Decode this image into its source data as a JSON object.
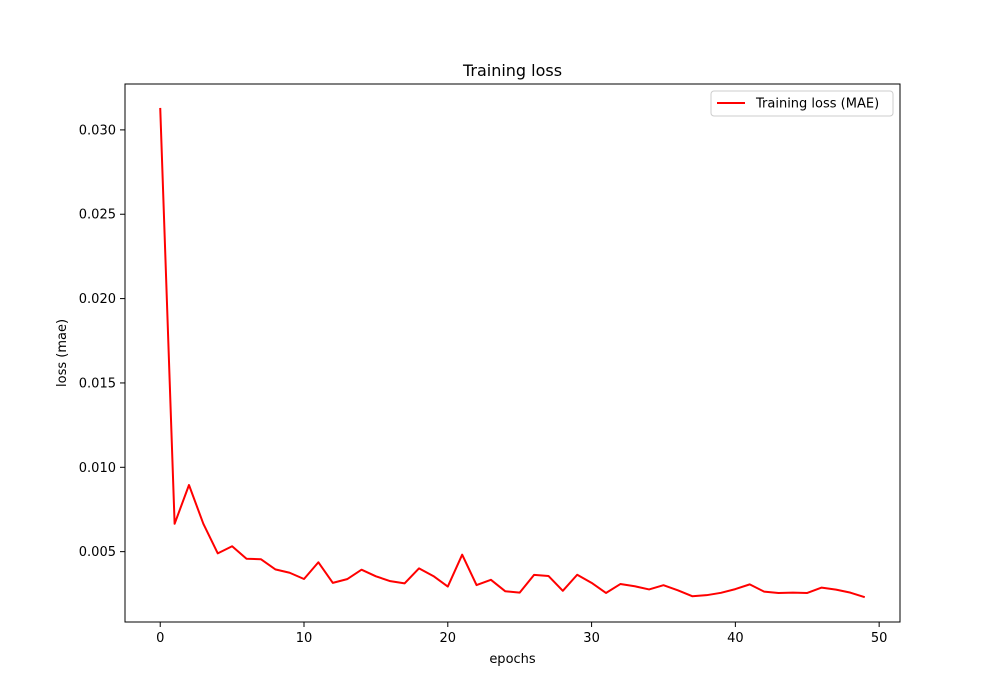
{
  "chart_data": {
    "type": "line",
    "title": "Training loss",
    "xlabel": "epochs",
    "ylabel": "loss (mae)",
    "xlim": [
      -2.45,
      51.45
    ],
    "ylim": [
      0.00083,
      0.03272
    ],
    "xticks": [
      0,
      10,
      20,
      30,
      40,
      50
    ],
    "xtick_labels": [
      "0",
      "10",
      "20",
      "30",
      "40",
      "50"
    ],
    "yticks": [
      0.005,
      0.01,
      0.015,
      0.02,
      0.025,
      0.03
    ],
    "ytick_labels": [
      "0.005",
      "0.010",
      "0.015",
      "0.020",
      "0.025",
      "0.030"
    ],
    "grid": false,
    "legend_position": "top-right",
    "series": [
      {
        "name": "Training loss (MAE)",
        "color": "#ff0000",
        "x": [
          0,
          1,
          2,
          3,
          4,
          5,
          6,
          7,
          8,
          9,
          10,
          11,
          12,
          13,
          14,
          15,
          16,
          17,
          18,
          19,
          20,
          21,
          22,
          23,
          24,
          25,
          26,
          27,
          28,
          29,
          30,
          31,
          32,
          33,
          34,
          35,
          36,
          37,
          38,
          39,
          40,
          41,
          42,
          43,
          44,
          45,
          46,
          47,
          48,
          49
        ],
        "y": [
          0.0313,
          0.00665,
          0.00895,
          0.00665,
          0.0049,
          0.00532,
          0.00458,
          0.00455,
          0.00395,
          0.00375,
          0.00338,
          0.00437,
          0.00315,
          0.00337,
          0.00393,
          0.00354,
          0.00325,
          0.00312,
          0.00401,
          0.00355,
          0.00293,
          0.00482,
          0.00302,
          0.00333,
          0.00265,
          0.00257,
          0.00362,
          0.00356,
          0.00268,
          0.00363,
          0.00315,
          0.00255,
          0.00308,
          0.00295,
          0.00276,
          0.00301,
          0.00271,
          0.00236,
          0.00242,
          0.00256,
          0.00278,
          0.00306,
          0.00263,
          0.00255,
          0.00257,
          0.00255,
          0.00287,
          0.00275,
          0.00257,
          0.0023
        ]
      }
    ]
  }
}
